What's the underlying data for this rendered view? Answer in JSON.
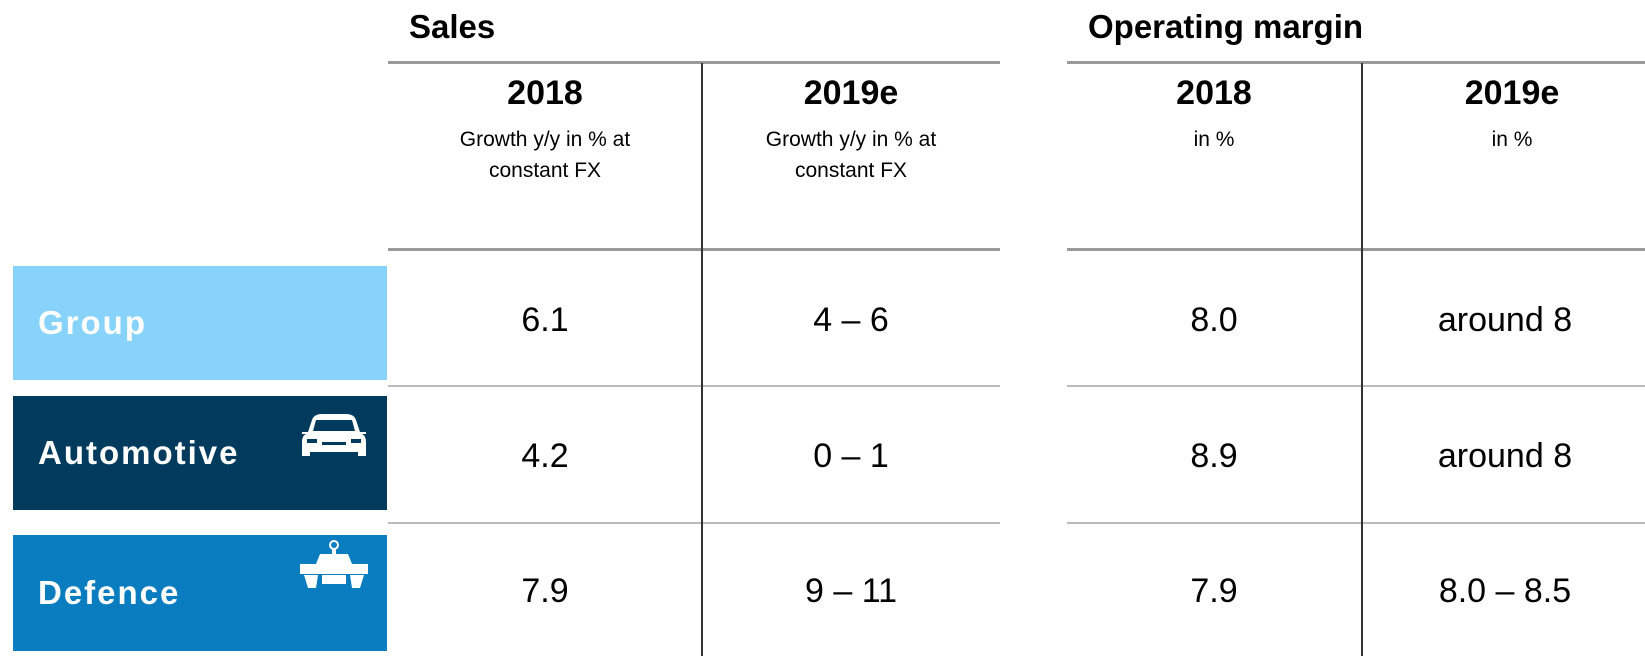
{
  "groups": [
    {
      "title": "Sales",
      "columns": [
        {
          "year": "2018",
          "unit": "Growth y/y in % at constant FX"
        },
        {
          "year": "2019e",
          "unit": "Growth y/y in % at constant FX"
        }
      ]
    },
    {
      "title": "Operating margin",
      "columns": [
        {
          "year": "2018",
          "unit": "in %"
        },
        {
          "year": "2019e",
          "unit": "in %"
        }
      ]
    }
  ],
  "rows": [
    {
      "label": "Group",
      "cells": [
        "6.1",
        "4 – 6",
        "8.0",
        "around 8"
      ]
    },
    {
      "label": "Automotive",
      "cells": [
        "4.2",
        "0 – 1",
        "8.9",
        "around 8"
      ]
    },
    {
      "label": "Defence",
      "cells": [
        "7.9",
        "9 – 11",
        "7.9",
        "8.0 – 8.5"
      ]
    }
  ]
}
